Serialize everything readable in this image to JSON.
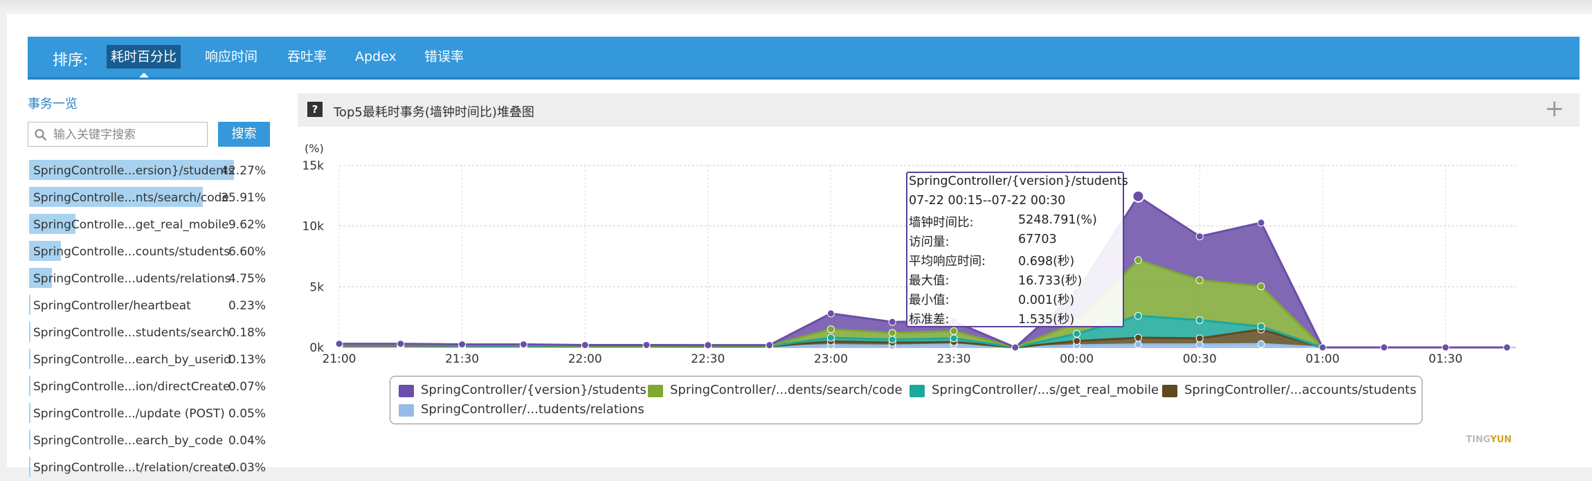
{
  "sort": {
    "label": "排序:",
    "tabs": [
      {
        "label": "耗时百分比",
        "active": true
      },
      {
        "label": "响应时间",
        "active": false
      },
      {
        "label": "吞吐率",
        "active": false
      },
      {
        "label": "Apdex",
        "active": false
      },
      {
        "label": "错误率",
        "active": false
      }
    ]
  },
  "sidebar": {
    "link": "事务一览",
    "search_placeholder": "输入关键字搜索",
    "search_button": "搜索",
    "items": [
      {
        "name": "SpringControlle...ersion}/students",
        "pct": "42.27%",
        "share": 0.4227
      },
      {
        "name": "SpringControlle...nts/search/code",
        "pct": "35.91%",
        "share": 0.3591
      },
      {
        "name": "SpringControlle...get_real_mobile",
        "pct": "9.62%",
        "share": 0.0962
      },
      {
        "name": "SpringControlle...counts/students",
        "pct": "6.60%",
        "share": 0.066
      },
      {
        "name": "SpringControlle...udents/relations",
        "pct": "4.75%",
        "share": 0.0475
      },
      {
        "name": "SpringController/heartbeat",
        "pct": "0.23%",
        "share": 0.0023
      },
      {
        "name": "SpringControlle...students/search",
        "pct": "0.18%",
        "share": 0.0018
      },
      {
        "name": "SpringControlle...earch_by_userid",
        "pct": "0.13%",
        "share": 0.0013
      },
      {
        "name": "SpringControlle...ion/directCreate",
        "pct": "0.07%",
        "share": 0.0007
      },
      {
        "name": "SpringControlle.../update (POST)",
        "pct": "0.05%",
        "share": 0.0005
      },
      {
        "name": "SpringControlle...earch_by_code",
        "pct": "0.04%",
        "share": 0.0004
      },
      {
        "name": "SpringControlle...t/relation/create",
        "pct": "0.03%",
        "share": 0.0003
      }
    ]
  },
  "panel": {
    "help_icon": "?",
    "title": "Top5最耗时事务(墙钟时间比)堆叠图",
    "expand_icon": "+"
  },
  "tooltip": {
    "title": "SpringController/{version}/students",
    "range": "07-22 00:15--07-22 00:30",
    "rows": [
      {
        "k": "墙钟时间比:",
        "v": "5248.791(%)"
      },
      {
        "k": "访问量:",
        "v": "67703"
      },
      {
        "k": "平均响应时间:",
        "v": "0.698(秒)"
      },
      {
        "k": "最大值:",
        "v": "16.733(秒)"
      },
      {
        "k": "最小值:",
        "v": "0.001(秒)"
      },
      {
        "k": "标准差:",
        "v": "1.535(秒)"
      }
    ]
  },
  "brand": {
    "part1": "TING",
    "part2": "YUN",
    "color1": "#bbbbbb",
    "color2": "#d9a21b"
  },
  "chart_data": {
    "type": "area",
    "stacked": true,
    "ylabel": "(%)",
    "ylim": [
      0,
      15000
    ],
    "yticks": [
      "0k",
      "5k",
      "10k",
      "15k"
    ],
    "xtick_labels": [
      "21:00",
      "21:30",
      "22:00",
      "22:30",
      "23:00",
      "23:30",
      "00:00",
      "00:30",
      "01:00",
      "01:30"
    ],
    "x": [
      "21:00",
      "21:15",
      "21:30",
      "21:45",
      "22:00",
      "22:15",
      "22:30",
      "22:45",
      "23:00",
      "23:15",
      "23:30",
      "23:45",
      "00:00",
      "00:15",
      "00:30",
      "00:45",
      "01:00",
      "01:15",
      "01:30",
      "01:45"
    ],
    "grid": true,
    "series": [
      {
        "name": "SpringController/...tudents/relations",
        "color": "#95bce8",
        "values": [
          100,
          100,
          80,
          80,
          60,
          60,
          50,
          50,
          200,
          150,
          250,
          0,
          180,
          250,
          250,
          280,
          0,
          0,
          0,
          0
        ]
      },
      {
        "name": "SpringController/...accounts/students",
        "color": "#5e4a1f",
        "values": [
          50,
          50,
          40,
          40,
          30,
          30,
          30,
          30,
          300,
          250,
          200,
          0,
          350,
          550,
          500,
          1200,
          0,
          0,
          0,
          0
        ]
      },
      {
        "name": "SpringController/...s/get_real_mobile",
        "color": "#1ba89a",
        "values": [
          50,
          50,
          40,
          40,
          30,
          30,
          30,
          30,
          300,
          250,
          300,
          0,
          600,
          1800,
          1500,
          250,
          0,
          0,
          0,
          0
        ]
      },
      {
        "name": "SpringController/...dents/search/code",
        "color": "#7ea832",
        "values": [
          50,
          50,
          40,
          40,
          30,
          30,
          30,
          30,
          700,
          550,
          600,
          0,
          900,
          4600,
          3300,
          3300,
          0,
          0,
          0,
          0
        ]
      },
      {
        "name": "SpringController/{version}/students",
        "color": "#6a4ea8",
        "values": [
          50,
          50,
          50,
          50,
          50,
          50,
          50,
          50,
          1300,
          900,
          800,
          0,
          2500,
          5250,
          3600,
          5250,
          0,
          0,
          0,
          0
        ]
      }
    ],
    "legend": [
      "SpringController/{version}/students",
      "SpringController/...dents/search/code",
      "SpringController/...s/get_real_mobile",
      "SpringController/...accounts/students",
      "SpringController/...tudents/relations"
    ],
    "legend_position": "bottom"
  }
}
